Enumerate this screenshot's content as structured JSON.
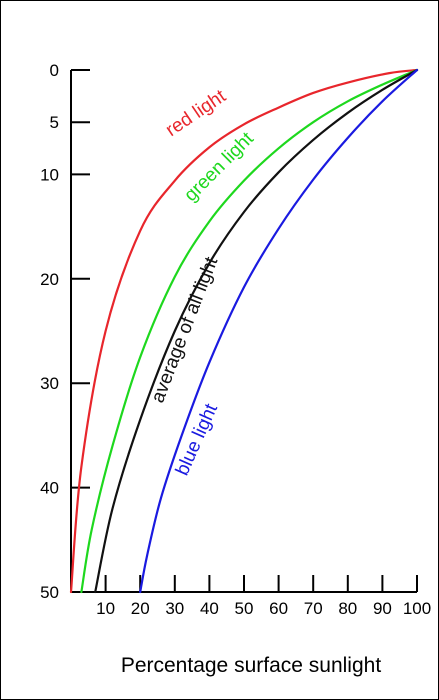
{
  "chart_data": {
    "type": "line",
    "title": "",
    "xlabel": "Percentage surface sunlight",
    "ylabel": "",
    "xlim": [
      0,
      100
    ],
    "ylim": [
      0,
      50
    ],
    "y_inverted": true,
    "x_ticks": [
      10,
      20,
      30,
      40,
      50,
      60,
      70,
      80,
      90,
      100
    ],
    "y_ticks": [
      0,
      5,
      10,
      20,
      30,
      40,
      50
    ],
    "grid": false,
    "legend": "none",
    "series": [
      {
        "name": "red light",
        "color": "#e8262c",
        "points": [
          [
            100,
            0
          ],
          [
            92,
            0.3
          ],
          [
            80,
            1.2
          ],
          [
            70,
            2.2
          ],
          [
            60,
            3.6
          ],
          [
            50,
            5.2
          ],
          [
            40,
            7.4
          ],
          [
            30,
            10.6
          ],
          [
            20,
            15.4
          ],
          [
            10,
            25
          ],
          [
            3,
            38
          ],
          [
            0,
            50
          ]
        ]
      },
      {
        "name": "green light",
        "color": "#1ed81e",
        "points": [
          [
            100,
            0
          ],
          [
            90,
            1.4
          ],
          [
            80,
            3
          ],
          [
            70,
            5
          ],
          [
            60,
            7.5
          ],
          [
            50,
            10.6
          ],
          [
            40,
            14.5
          ],
          [
            30,
            19.8
          ],
          [
            20,
            27.5
          ],
          [
            12,
            36
          ],
          [
            6,
            44
          ],
          [
            3,
            50
          ]
        ]
      },
      {
        "name": "average of all light",
        "color": "#111111",
        "points": [
          [
            100,
            0
          ],
          [
            90,
            1.9
          ],
          [
            80,
            4.1
          ],
          [
            70,
            6.7
          ],
          [
            60,
            9.8
          ],
          [
            50,
            13.6
          ],
          [
            40,
            18.5
          ],
          [
            30,
            25
          ],
          [
            20,
            33.5
          ],
          [
            12,
            42
          ],
          [
            7,
            50
          ]
        ]
      },
      {
        "name": "blue light",
        "color": "#1a1ae0",
        "points": [
          [
            100,
            0
          ],
          [
            90,
            3
          ],
          [
            80,
            6.5
          ],
          [
            70,
            10.5
          ],
          [
            60,
            15.2
          ],
          [
            50,
            20.8
          ],
          [
            40,
            28
          ],
          [
            32,
            35
          ],
          [
            26,
            41
          ],
          [
            22,
            46.5
          ],
          [
            20,
            50
          ]
        ]
      }
    ]
  }
}
